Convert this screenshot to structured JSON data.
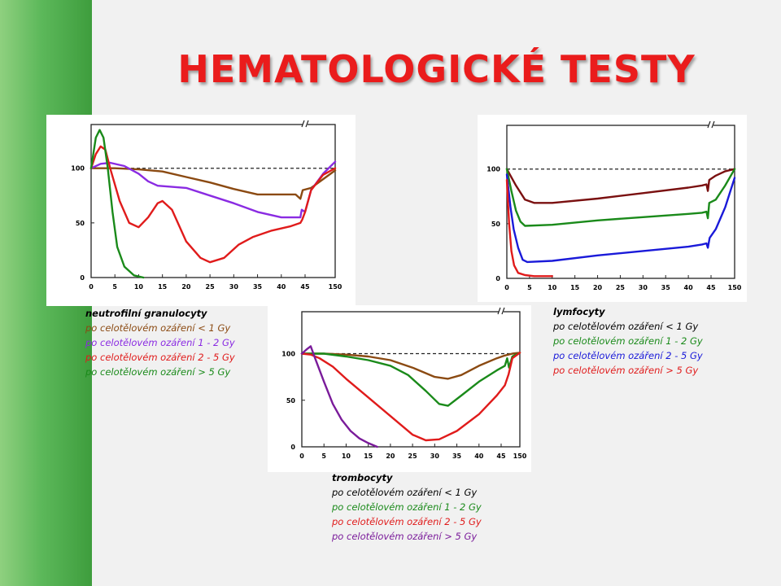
{
  "slide": {
    "title": "HEMATOLOGICKÉ TESTY",
    "accent_bar_color": "#4fae4c",
    "title_color": "#ea1c1c"
  },
  "chart_data": [
    {
      "id": "neutro",
      "type": "line",
      "title": "neutrofilní granulocyty",
      "x_ticks": [
        "0",
        "5",
        "10",
        "15",
        "20",
        "25",
        "30",
        "35",
        "40",
        "45",
        "150"
      ],
      "y_ticks": [
        "0",
        "50",
        "100"
      ],
      "ylim": [
        0,
        140
      ],
      "reference_value": 100,
      "series": [
        {
          "name": "po celotělovém ozáření < 1 Gy",
          "color": "#8b4a12",
          "points": [
            [
              0,
              100
            ],
            [
              5,
              100
            ],
            [
              10,
              99
            ],
            [
              15,
              97
            ],
            [
              20,
              92
            ],
            [
              25,
              87
            ],
            [
              30,
              81
            ],
            [
              35,
              76
            ],
            [
              40,
              76
            ],
            [
              43,
              76
            ],
            [
              44,
              72
            ],
            [
              44.5,
              80
            ],
            [
              46,
              82
            ],
            [
              48,
              90
            ],
            [
              50,
              98
            ]
          ]
        },
        {
          "name": "po celotělovém ozáření 1 - 2 Gy",
          "color": "#8a2be2",
          "points": [
            [
              0,
              100
            ],
            [
              2,
              104
            ],
            [
              4,
              105
            ],
            [
              7,
              102
            ],
            [
              10,
              95
            ],
            [
              12,
              88
            ],
            [
              14,
              84
            ],
            [
              20,
              82
            ],
            [
              25,
              75
            ],
            [
              30,
              68
            ],
            [
              35,
              60
            ],
            [
              40,
              55
            ],
            [
              43,
              55
            ],
            [
              44,
              55
            ],
            [
              44.3,
              62
            ],
            [
              45,
              60
            ],
            [
              46,
              80
            ],
            [
              48,
              95
            ],
            [
              50,
              106
            ]
          ]
        },
        {
          "name": "po celotělovém ozáření 2 - 5 Gy",
          "color": "#e01b1b",
          "points": [
            [
              0,
              100
            ],
            [
              1,
              113
            ],
            [
              2,
              120
            ],
            [
              3,
              117
            ],
            [
              4,
              100
            ],
            [
              6,
              70
            ],
            [
              8,
              50
            ],
            [
              10,
              46
            ],
            [
              12,
              55
            ],
            [
              14,
              68
            ],
            [
              15,
              70
            ],
            [
              17,
              62
            ],
            [
              20,
              33
            ],
            [
              23,
              18
            ],
            [
              25,
              14
            ],
            [
              28,
              18
            ],
            [
              31,
              30
            ],
            [
              34,
              37
            ],
            [
              38,
              43
            ],
            [
              42,
              47
            ],
            [
              44,
              50
            ],
            [
              44.4,
              53
            ],
            [
              45,
              60
            ],
            [
              46,
              80
            ],
            [
              48,
              94
            ],
            [
              50,
              100
            ]
          ]
        },
        {
          "name": "po celotělovém ozáření > 5 Gy",
          "color": "#1a8a1a",
          "points": [
            [
              0,
              100
            ],
            [
              1,
              128
            ],
            [
              1.8,
              135
            ],
            [
              2.6,
              128
            ],
            [
              3.5,
              100
            ],
            [
              4.5,
              60
            ],
            [
              5.5,
              28
            ],
            [
              7,
              10
            ],
            [
              9,
              2
            ],
            [
              11,
              0
            ]
          ]
        }
      ]
    },
    {
      "id": "lymfo",
      "type": "line",
      "title": "lymfocyty",
      "x_ticks": [
        "0",
        "5",
        "10",
        "15",
        "20",
        "25",
        "30",
        "35",
        "40",
        "45",
        "150"
      ],
      "y_ticks": [
        "0",
        "50",
        "100"
      ],
      "ylim": [
        0,
        140
      ],
      "reference_value": 100,
      "series": [
        {
          "name": "po celotělovém ozáření < 1 Gy",
          "color": "#7a1010",
          "points": [
            [
              0,
              100
            ],
            [
              2,
              85
            ],
            [
              4,
              72
            ],
            [
              6,
              69
            ],
            [
              10,
              69
            ],
            [
              20,
              73
            ],
            [
              30,
              78
            ],
            [
              40,
              83
            ],
            [
              43,
              85
            ],
            [
              44,
              86
            ],
            [
              44.3,
              80
            ],
            [
              44.6,
              90
            ],
            [
              46,
              94
            ],
            [
              48,
              98
            ],
            [
              50,
              100
            ]
          ]
        },
        {
          "name": "po celotělovém ozáření 1 - 2 Gy",
          "color": "#1a8a1a",
          "points": [
            [
              0,
              100
            ],
            [
              1,
              80
            ],
            [
              2,
              62
            ],
            [
              3,
              52
            ],
            [
              4,
              48
            ],
            [
              10,
              49
            ],
            [
              20,
              53
            ],
            [
              30,
              56
            ],
            [
              40,
              59
            ],
            [
              43,
              60
            ],
            [
              44,
              61
            ],
            [
              44.3,
              55
            ],
            [
              44.6,
              69
            ],
            [
              46,
              72
            ],
            [
              48,
              85
            ],
            [
              50,
              100
            ]
          ]
        },
        {
          "name": "po celotělovém ozáření 2 - 5 Gy",
          "color": "#1a1ad9",
          "points": [
            [
              0,
              95
            ],
            [
              0.8,
              65
            ],
            [
              1.5,
              45
            ],
            [
              2.5,
              28
            ],
            [
              3.5,
              17
            ],
            [
              4.5,
              15
            ],
            [
              10,
              16
            ],
            [
              20,
              21
            ],
            [
              30,
              25
            ],
            [
              40,
              29
            ],
            [
              43,
              31
            ],
            [
              44,
              32
            ],
            [
              44.3,
              28
            ],
            [
              44.7,
              37
            ],
            [
              46,
              45
            ],
            [
              48,
              65
            ],
            [
              50,
              92
            ]
          ]
        },
        {
          "name": "po celotělovém ozáření > 5 Gy",
          "color": "#e01b1b",
          "points": [
            [
              0,
              90
            ],
            [
              0.5,
              50
            ],
            [
              1,
              25
            ],
            [
              1.6,
              12
            ],
            [
              2.5,
              5
            ],
            [
              4,
              3
            ],
            [
              6,
              2
            ],
            [
              10,
              2
            ]
          ]
        }
      ]
    },
    {
      "id": "trombo",
      "type": "line",
      "title": "trombocyty",
      "x_ticks": [
        "0",
        "5",
        "10",
        "15",
        "20",
        "25",
        "30",
        "35",
        "40",
        "45",
        "150"
      ],
      "y_ticks": [
        "0",
        "50",
        "100"
      ],
      "ylim": [
        0,
        145
      ],
      "reference_value": 100,
      "series": [
        {
          "name": "po celotělovém ozáření < 1 Gy",
          "color": "#8b4a12",
          "points": [
            [
              0,
              100
            ],
            [
              5,
              100
            ],
            [
              10,
              99
            ],
            [
              15,
              97
            ],
            [
              20,
              93
            ],
            [
              25,
              85
            ],
            [
              30,
              75
            ],
            [
              33,
              73
            ],
            [
              36,
              77
            ],
            [
              40,
              87
            ],
            [
              44,
              95
            ],
            [
              46,
              98
            ],
            [
              48,
              100
            ],
            [
              50,
              101
            ]
          ]
        },
        {
          "name": "po celotělovém ozáření 1 - 2 Gy",
          "color": "#1a8a1a",
          "points": [
            [
              0,
              100
            ],
            [
              5,
              100
            ],
            [
              10,
              97
            ],
            [
              15,
              93
            ],
            [
              20,
              87
            ],
            [
              24,
              77
            ],
            [
              28,
              60
            ],
            [
              31,
              46
            ],
            [
              33,
              44
            ],
            [
              36,
              55
            ],
            [
              40,
              70
            ],
            [
              44,
              82
            ],
            [
              46,
              87
            ],
            [
              46.6,
              95
            ],
            [
              47.1,
              85
            ],
            [
              48,
              97
            ],
            [
              50,
              101
            ]
          ]
        },
        {
          "name": "po celotělovém ozáření 2 - 5 Gy",
          "color": "#e01b1b",
          "points": [
            [
              0,
              100
            ],
            [
              2,
              99
            ],
            [
              4,
              95
            ],
            [
              7,
              86
            ],
            [
              10,
              73
            ],
            [
              15,
              53
            ],
            [
              20,
              33
            ],
            [
              25,
              13
            ],
            [
              28,
              7
            ],
            [
              31,
              8
            ],
            [
              35,
              17
            ],
            [
              40,
              35
            ],
            [
              44,
              55
            ],
            [
              46,
              66
            ],
            [
              47,
              78
            ],
            [
              48,
              95
            ],
            [
              50,
              101
            ]
          ]
        },
        {
          "name": "po celotělovém ozáření > 5 Gy",
          "color": "#7a1b9a",
          "points": [
            [
              0,
              100
            ],
            [
              1.2,
              105
            ],
            [
              2,
              108
            ],
            [
              3,
              95
            ],
            [
              5,
              70
            ],
            [
              7,
              46
            ],
            [
              9,
              29
            ],
            [
              11,
              17
            ],
            [
              13,
              9
            ],
            [
              15,
              4
            ],
            [
              17,
              0
            ]
          ]
        }
      ]
    }
  ]
}
